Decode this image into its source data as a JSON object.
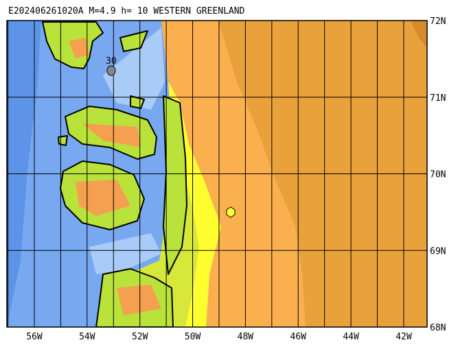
{
  "header": {
    "title": "E202406261020A M=4.9 h= 10 WESTERN GREENLAND"
  },
  "map": {
    "lat_labels": [
      "72N",
      "71N",
      "70N",
      "69N",
      "68N"
    ],
    "lon_labels": [
      "56W",
      "54W",
      "52W",
      "50W",
      "48W",
      "46W",
      "44W",
      "42W"
    ],
    "marker_label": "30"
  }
}
